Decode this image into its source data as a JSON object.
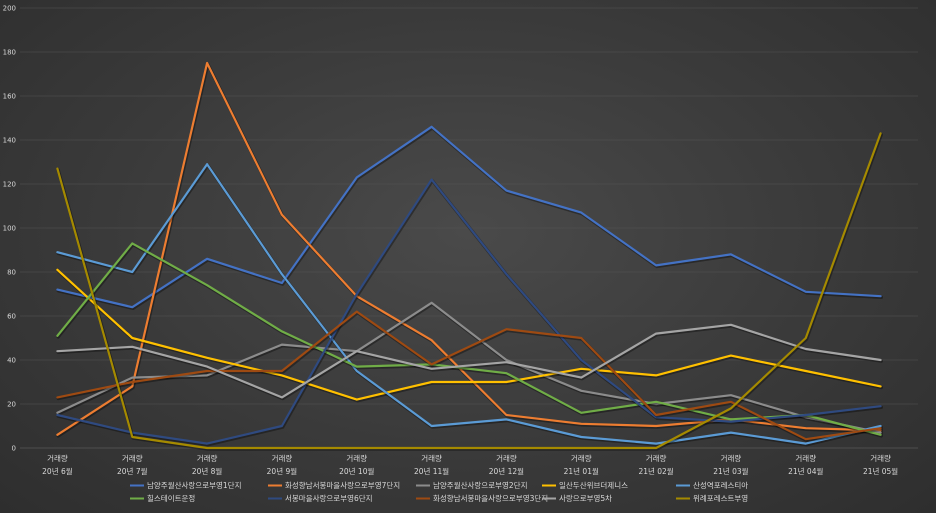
{
  "chart_data": {
    "type": "line",
    "title": "",
    "xlabel": "",
    "ylabel": "",
    "ylim": [
      0,
      200
    ],
    "yticks": [
      0,
      20,
      40,
      60,
      80,
      100,
      120,
      140,
      160,
      180,
      200
    ],
    "grid": true,
    "legend_position": "bottom",
    "categories": [
      {
        "top": "거래량",
        "bottom": "20년 6월"
      },
      {
        "top": "거래량",
        "bottom": "20년 7월"
      },
      {
        "top": "거래량",
        "bottom": "20년 8월"
      },
      {
        "top": "거래량",
        "bottom": "20년 9월"
      },
      {
        "top": "거래량",
        "bottom": "20년 10월"
      },
      {
        "top": "거래량",
        "bottom": "20년 11월"
      },
      {
        "top": "거래량",
        "bottom": "20년 12월"
      },
      {
        "top": "거래량",
        "bottom": "21년 01월"
      },
      {
        "top": "거래량",
        "bottom": "21년 02월"
      },
      {
        "top": "거래량",
        "bottom": "21년 03월"
      },
      {
        "top": "거래량",
        "bottom": "21년 04월"
      },
      {
        "top": "거래량",
        "bottom": "21년 05월"
      }
    ],
    "series": [
      {
        "name": "남양주월산사랑으로부영1단지",
        "color": "#4472c4",
        "values": [
          72,
          64,
          86,
          75,
          123,
          146,
          117,
          107,
          83,
          88,
          71,
          69
        ]
      },
      {
        "name": "화성향남서봉마을사랑으로부영7단지",
        "color": "#ed7d31",
        "values": [
          6,
          28,
          175,
          106,
          69,
          49,
          15,
          11,
          10,
          13,
          9,
          8
        ]
      },
      {
        "name": "남양주월산사랑으로부영2단지",
        "color": "#8c8c8c",
        "values": [
          16,
          32,
          33,
          47,
          44,
          66,
          40,
          26,
          20,
          24,
          14,
          7
        ]
      },
      {
        "name": "일산두산위브더제니스",
        "color": "#ffc000",
        "values": [
          81,
          50,
          41,
          33,
          22,
          30,
          30,
          36,
          33,
          42,
          35,
          28
        ]
      },
      {
        "name": "산성역포레스티아",
        "color": "#5b9bd5",
        "values": [
          89,
          80,
          129,
          79,
          35,
          10,
          13,
          5,
          2,
          7,
          2,
          10
        ]
      },
      {
        "name": "힐스테이트운정",
        "color": "#70ad47",
        "values": [
          51,
          93,
          74,
          53,
          37,
          38,
          34,
          16,
          21,
          13,
          15,
          6
        ]
      },
      {
        "name": "서봉마을사랑으로부영6단지",
        "color": "#2f4a80",
        "values": [
          15,
          7,
          2,
          10,
          70,
          122,
          79,
          40,
          14,
          12,
          15,
          19
        ]
      },
      {
        "name": "화성향남서봉마을사랑으로부영3단지",
        "color": "#9e4a12",
        "values": [
          23,
          30,
          35,
          35,
          62,
          38,
          54,
          50,
          15,
          21,
          4,
          9
        ]
      },
      {
        "name": "사랑으로부영5차",
        "color": "#a5a5a5",
        "values": [
          44,
          46,
          37,
          23,
          44,
          36,
          39,
          32,
          52,
          56,
          45,
          40
        ]
      },
      {
        "name": "위례포레스트부영",
        "color": "#a58a00",
        "values": [
          127,
          5,
          0,
          0,
          0,
          0,
          0,
          0,
          0,
          18,
          50,
          143
        ]
      }
    ]
  }
}
